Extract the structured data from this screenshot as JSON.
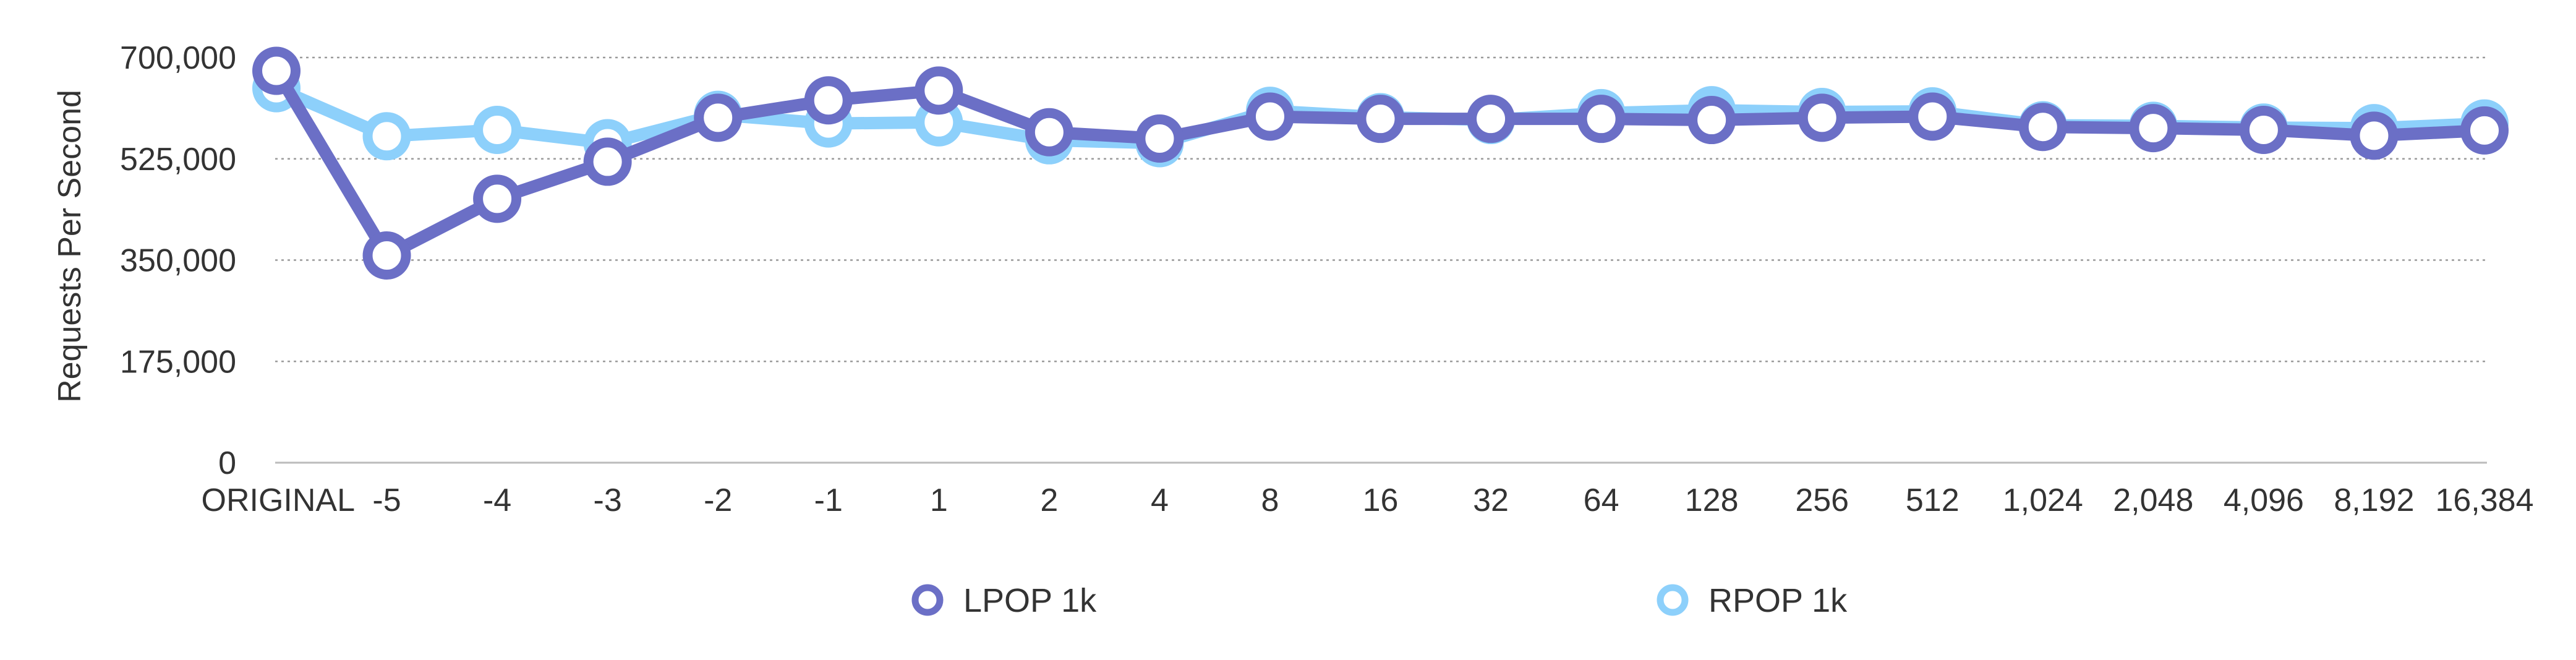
{
  "chart_data": {
    "type": "line",
    "title": "",
    "xlabel": "",
    "ylabel": "Requests Per Second",
    "categories": [
      "ORIGINAL",
      "-5",
      "-4",
      "-3",
      "-2",
      "-1",
      "1",
      "2",
      "4",
      "8",
      "16",
      "32",
      "64",
      "128",
      "256",
      "512",
      "1,024",
      "2,048",
      "4,096",
      "8,192",
      "16,384"
    ],
    "ylim": [
      0,
      700000
    ],
    "yticks": [
      0,
      175000,
      350000,
      525000,
      700000
    ],
    "ytick_labels": [
      "0",
      "175,000",
      "350,000",
      "525,000",
      "700,000"
    ],
    "grid": true,
    "legend_position": "bottom",
    "series": [
      {
        "name": "LPOP 1k",
        "color": "#6b6fc6",
        "values": [
          677000,
          358000,
          456000,
          520000,
          596000,
          626000,
          643000,
          571000,
          560000,
          598000,
          594000,
          594000,
          594000,
          592000,
          596000,
          598000,
          580000,
          578000,
          575000,
          565000,
          574000
        ]
      },
      {
        "name": "RPOP 1k",
        "color": "#8dd0fb",
        "values": [
          647000,
          564000,
          575000,
          552000,
          601000,
          586000,
          588000,
          557000,
          552000,
          608000,
          597000,
          592000,
          604000,
          609000,
          606000,
          607000,
          583000,
          582000,
          579000,
          578000,
          586000
        ]
      }
    ]
  }
}
